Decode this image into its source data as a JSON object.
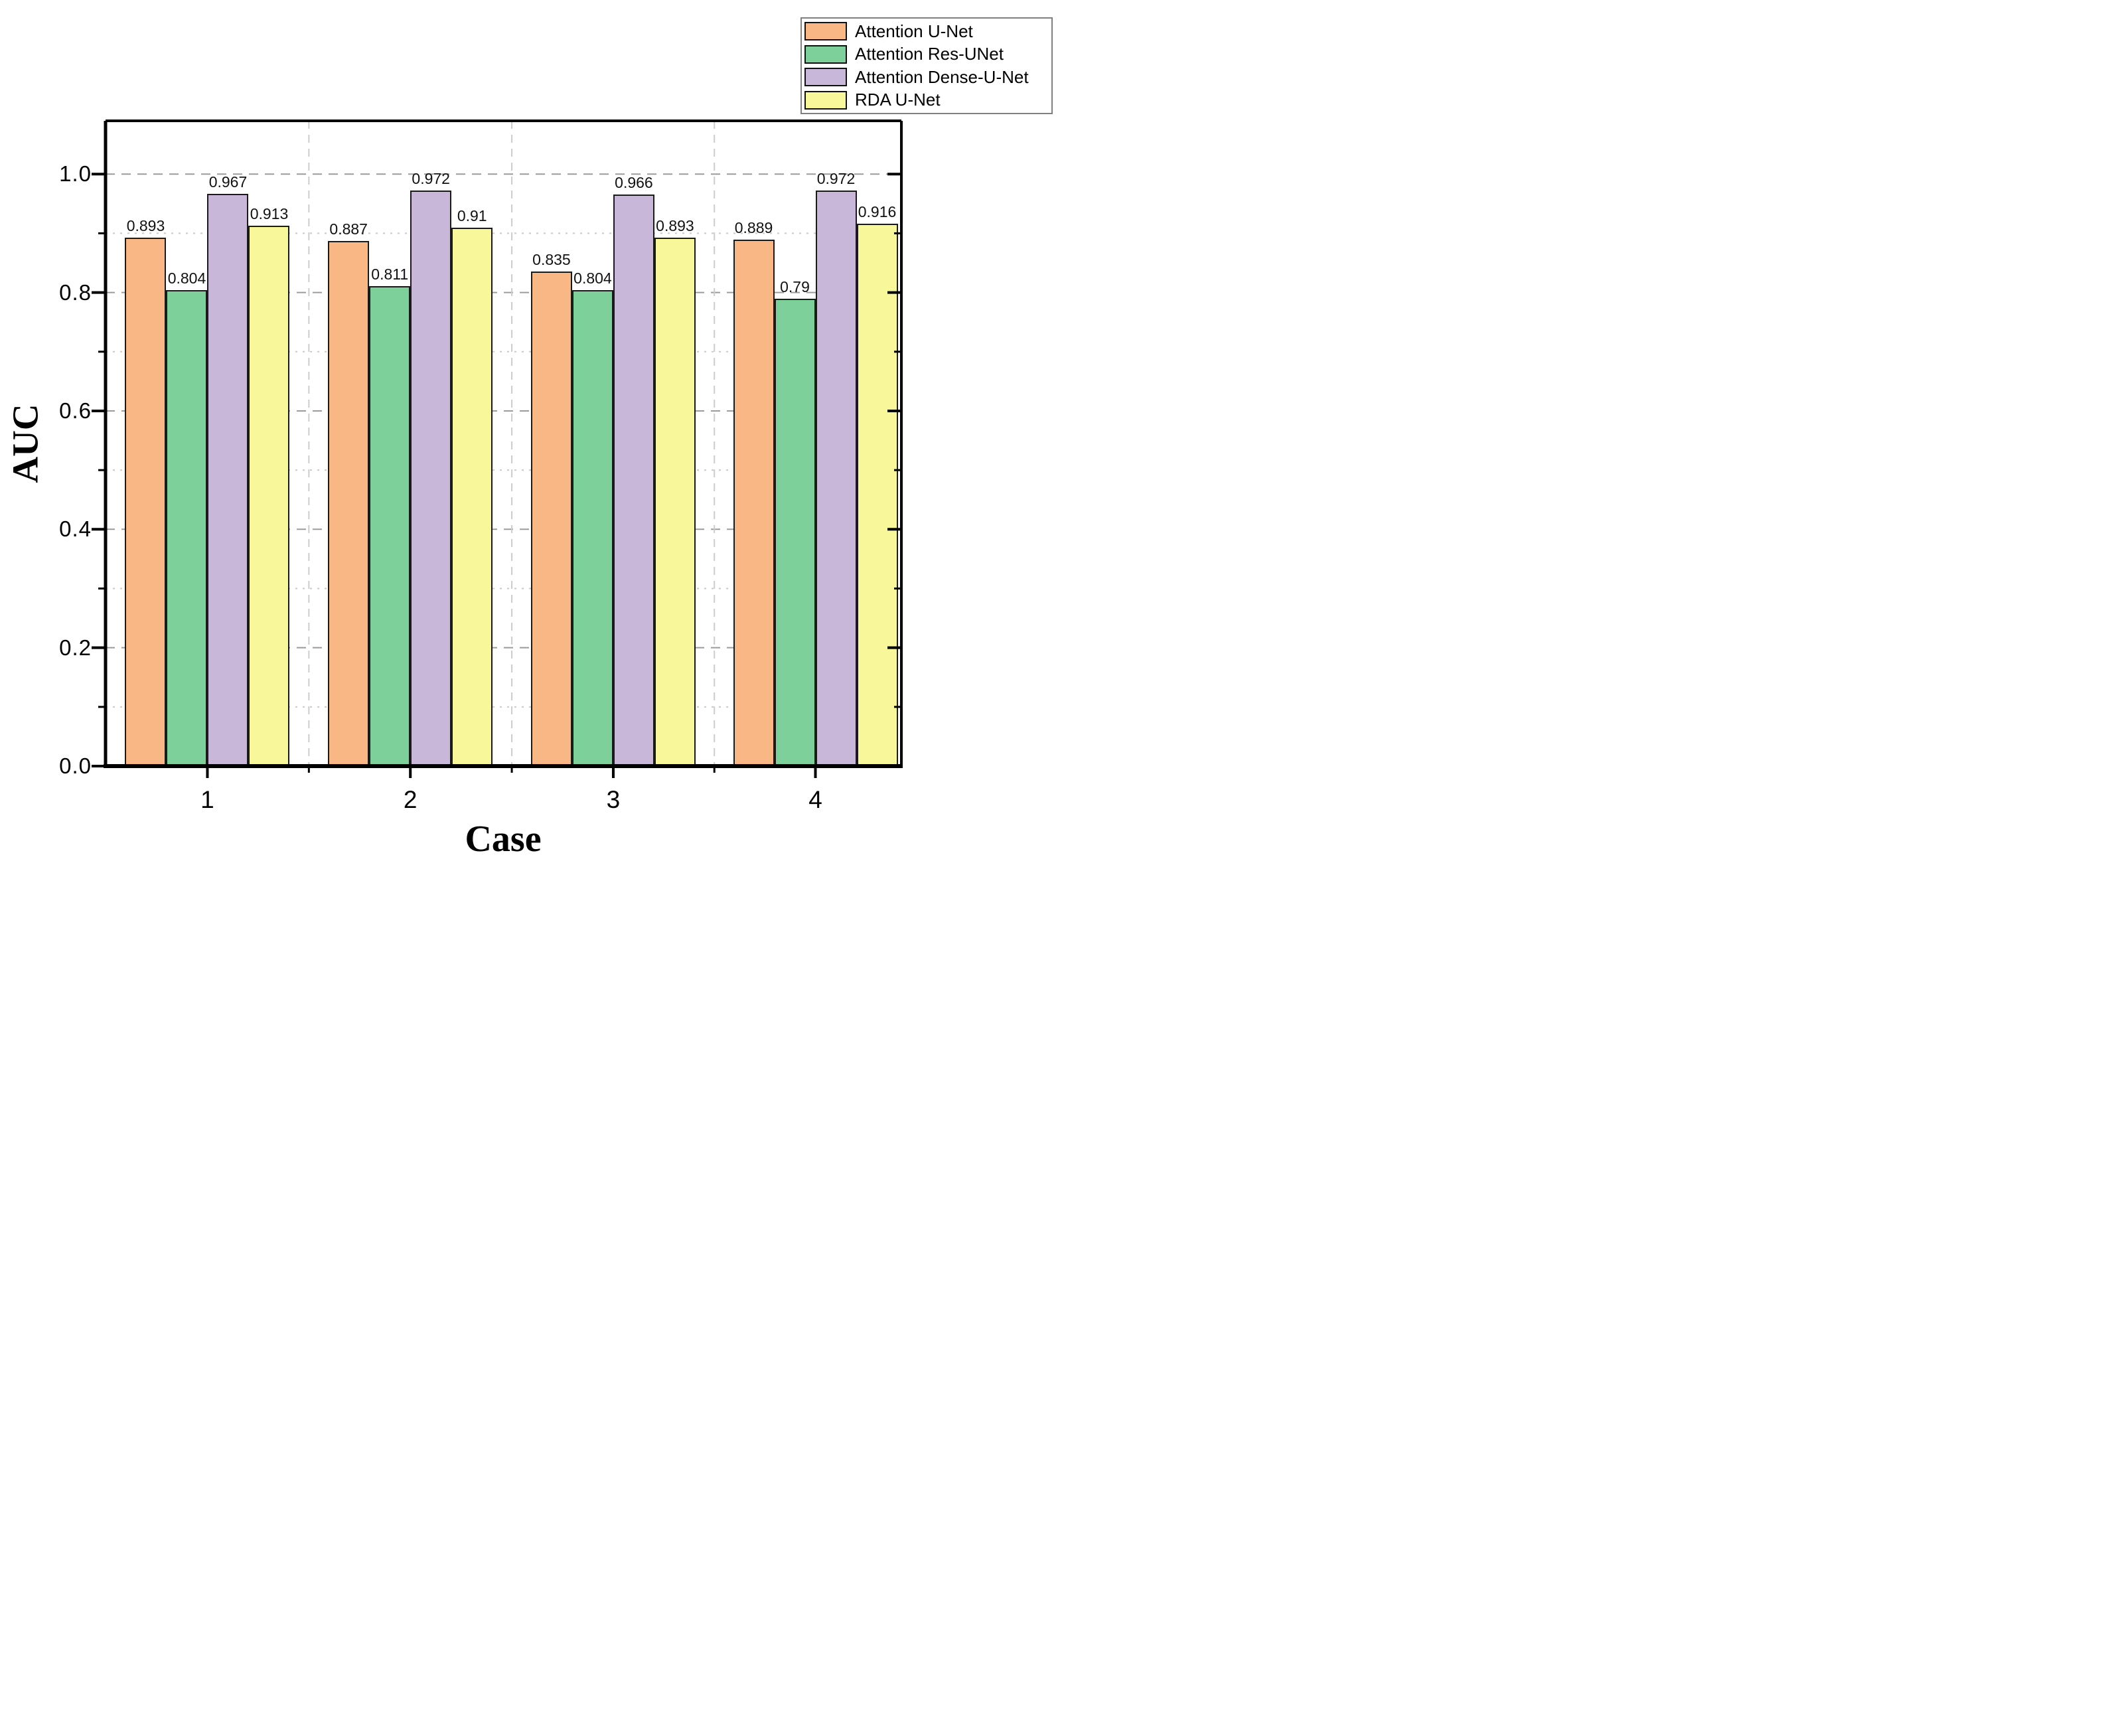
{
  "chart_data": {
    "type": "bar",
    "title": "",
    "xlabel": "Case",
    "ylabel": "AUC",
    "categories": [
      "1",
      "2",
      "3",
      "4"
    ],
    "series": [
      {
        "name": "Attention U-Net",
        "color": "#F9B786",
        "values": [
          0.893,
          0.887,
          0.835,
          0.889
        ],
        "value_labels": [
          "0.893",
          "0.887",
          "0.835",
          "0.889"
        ]
      },
      {
        "name": "Attention Res-UNet",
        "color": "#7DD09A",
        "values": [
          0.804,
          0.811,
          0.804,
          0.79
        ],
        "value_labels": [
          "0.804",
          "0.811",
          "0.804",
          "0.79"
        ]
      },
      {
        "name": "Attention Dense-U-Net",
        "color": "#C9B7D9",
        "values": [
          0.967,
          0.972,
          0.966,
          0.972
        ],
        "value_labels": [
          "0.967",
          "0.972",
          "0.966",
          "0.972"
        ]
      },
      {
        "name": "RDA U-Net",
        "color": "#F8F89B",
        "values": [
          0.913,
          0.91,
          0.893,
          0.916
        ],
        "value_labels": [
          "0.913",
          "0.91",
          "0.893",
          "0.916"
        ]
      }
    ],
    "y_axis": {
      "min": 0.0,
      "max": 1.09,
      "major_tick_values": [
        0.0,
        0.2,
        0.4,
        0.6,
        0.8,
        1.0
      ],
      "major_tick_labels": [
        "0.0",
        "0.2",
        "0.4",
        "0.6",
        "0.8",
        "1.0"
      ],
      "minor_tick_values": [
        0.1,
        0.3,
        0.5,
        0.7,
        0.9
      ]
    },
    "legend_position": "top-right",
    "grid": {
      "horizontal_major": "dashed",
      "horizontal_minor": "dotted",
      "vertical_minor": "dashed"
    },
    "bar_edge_color": "#1a1a1a"
  }
}
